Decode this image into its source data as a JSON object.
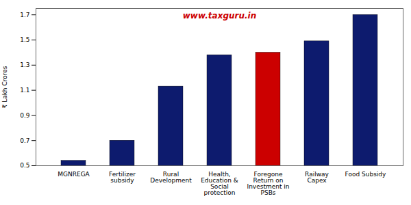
{
  "chart_data": {
    "type": "bar",
    "categories": [
      "MGNREGA",
      "Fertilizer\nsubsidy",
      "Rural\nDevelopment",
      "Health,\nEducation &\nSocial\nprotection",
      "Foregone\nReturn on\nInvestment in\nPSBs",
      "Railway\nCapex",
      "Food Subsidy"
    ],
    "values": [
      0.54,
      0.7,
      1.13,
      1.38,
      1.4,
      1.49,
      1.7
    ],
    "colors": [
      "#0d1b6e",
      "#0d1b6e",
      "#0d1b6e",
      "#0d1b6e",
      "#cc0000",
      "#0d1b6e",
      "#0d1b6e"
    ],
    "ylabel": "₹ Lakh Crores",
    "ylim": [
      0.5,
      1.75
    ],
    "yticks": [
      0.5,
      0.7,
      0.9,
      1.1,
      1.3,
      1.5,
      1.7
    ],
    "annotations": [
      {
        "text": "www.taxguru.in",
        "color": "#cc0000"
      }
    ],
    "grid": false
  }
}
